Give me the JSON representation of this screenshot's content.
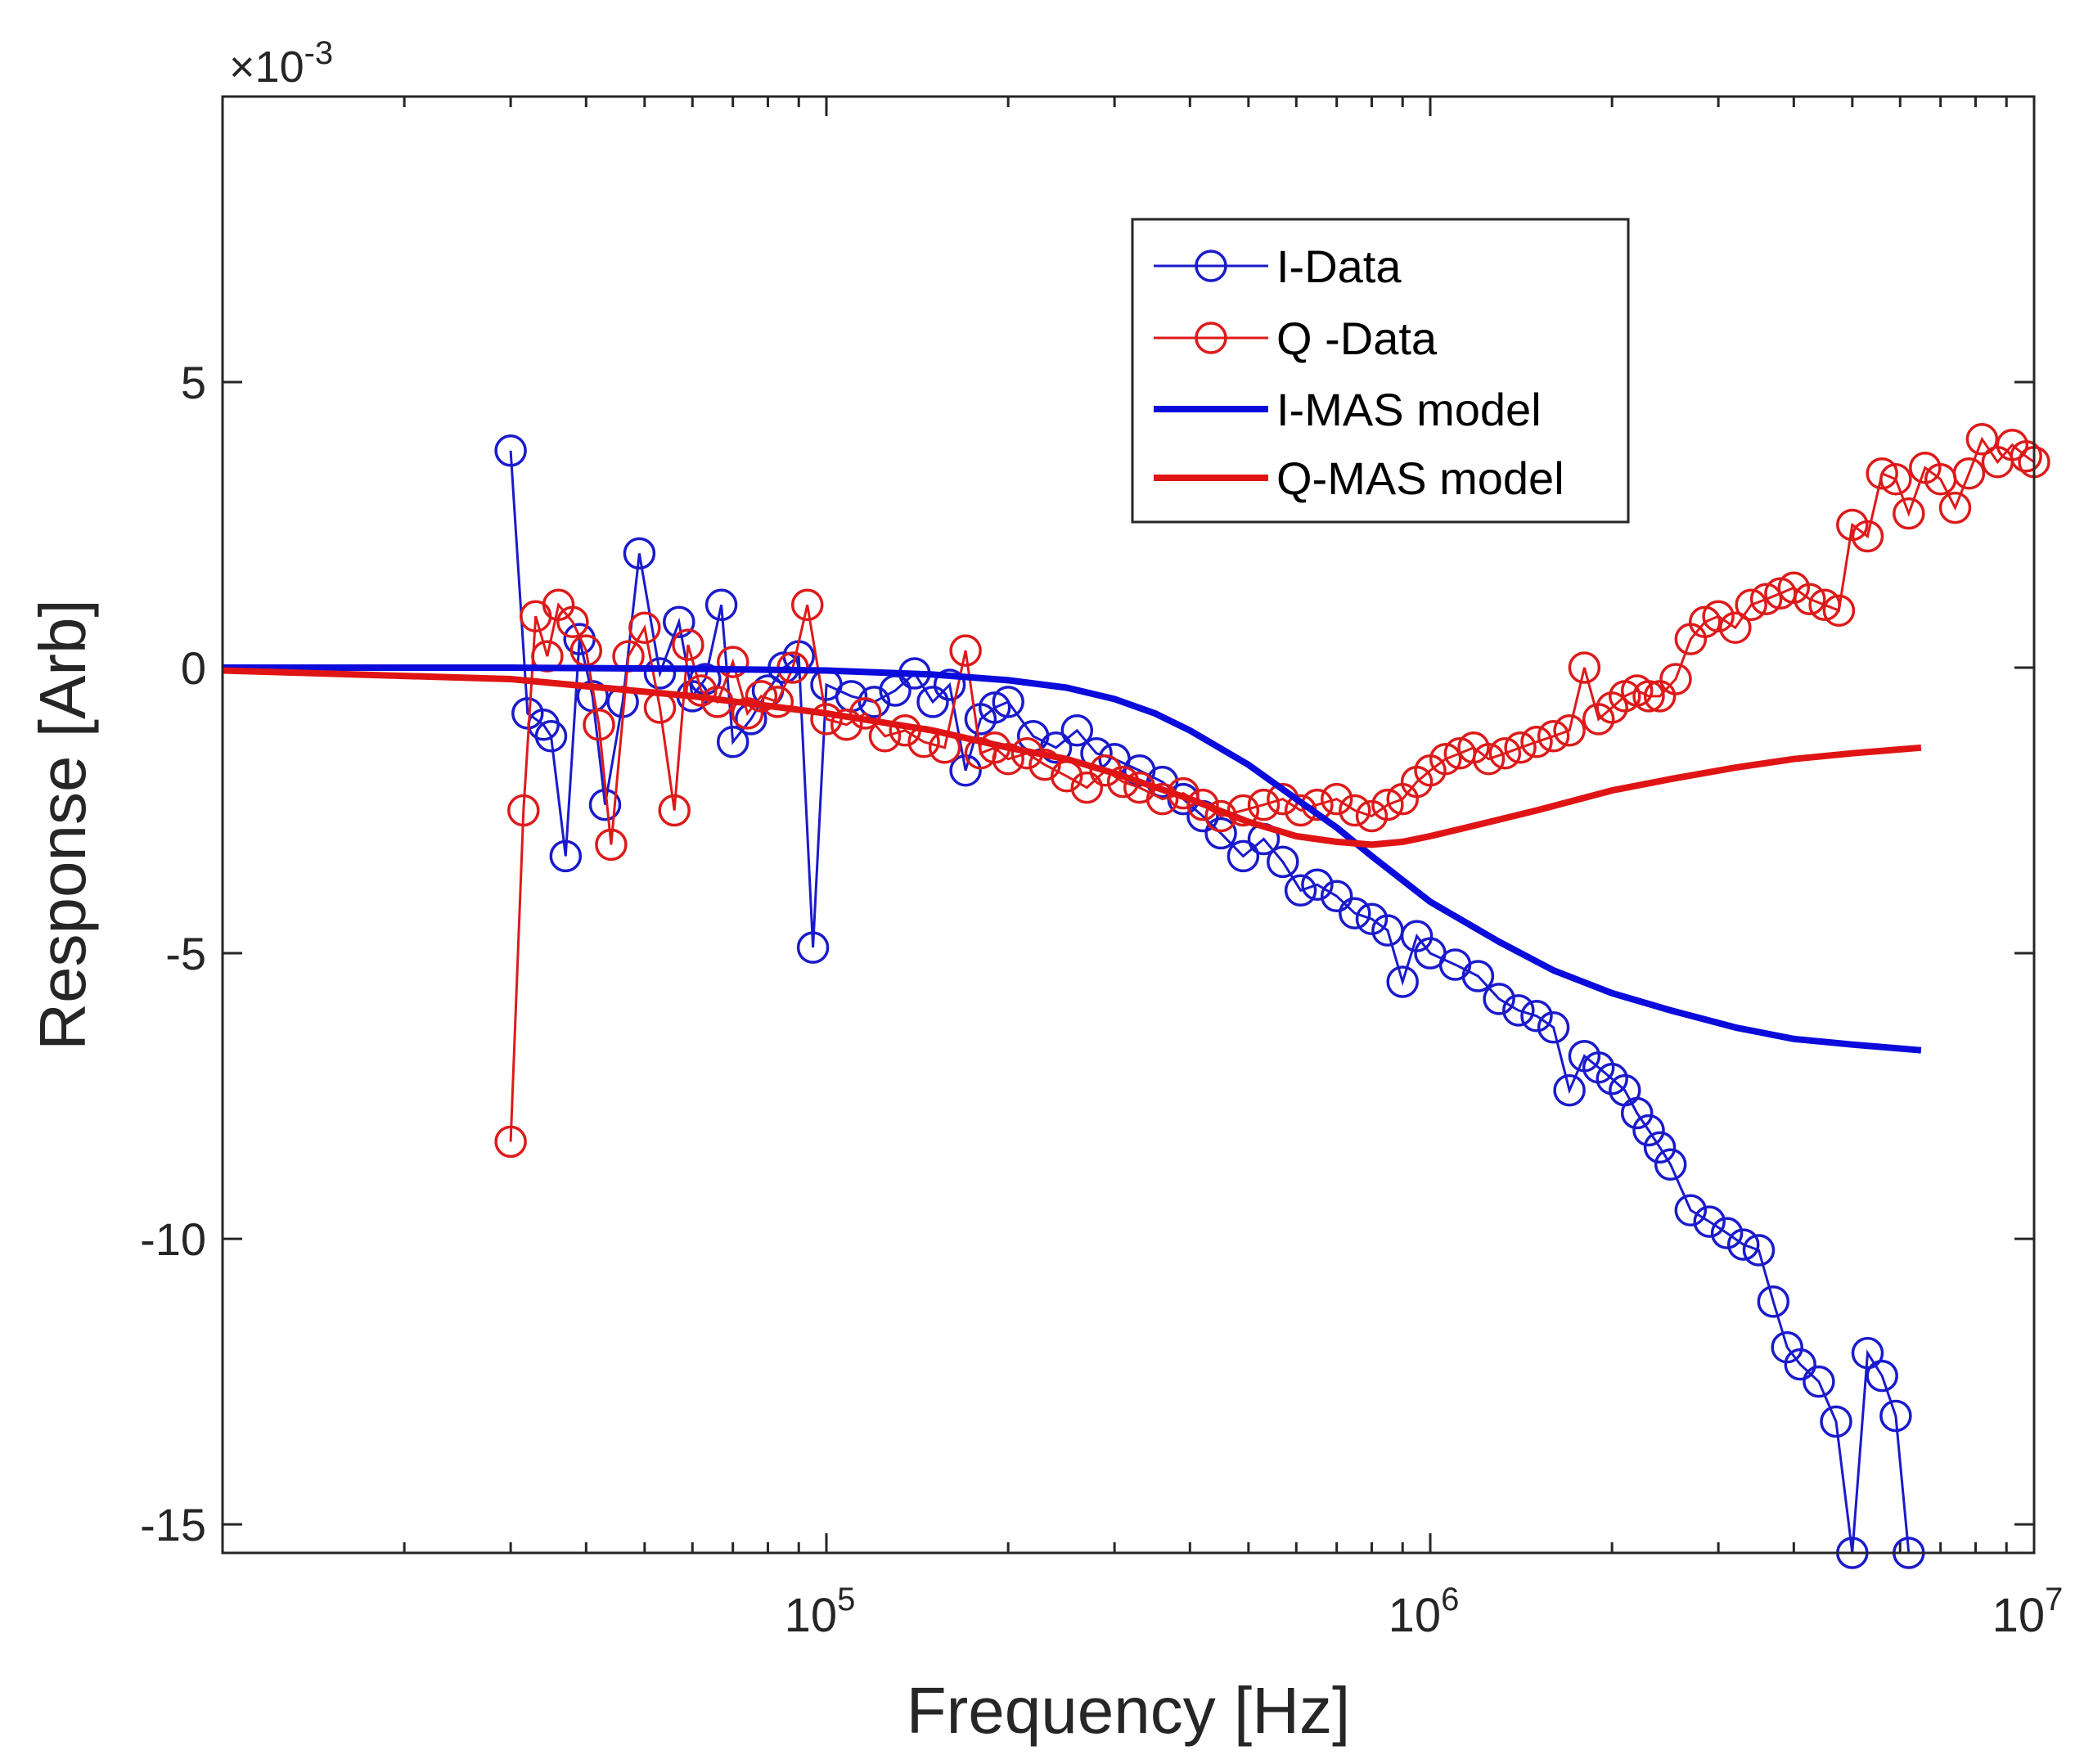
{
  "chart_data": {
    "type": "line",
    "title": "",
    "xlabel": "Frequency [Hz]",
    "ylabel": "Response [Arb]",
    "xscale": "log",
    "xlim": [
      10000,
      10000000
    ],
    "ylim": [
      -15.5,
      10
    ],
    "y_exponent_label": "×10",
    "y_exponent_power": "-3",
    "x_ticks": [
      {
        "value": 100000,
        "base": "10",
        "exp": "5"
      },
      {
        "value": 1000000,
        "base": "10",
        "exp": "6"
      },
      {
        "value": 10000000,
        "base": "10",
        "exp": "7"
      }
    ],
    "y_ticks": [
      {
        "value": 5,
        "label": "5"
      },
      {
        "value": 0,
        "label": "0"
      },
      {
        "value": -5,
        "label": "-5"
      },
      {
        "value": -10,
        "label": "-10"
      },
      {
        "value": -15,
        "label": "-15"
      }
    ],
    "legend_position": "top-right",
    "series": [
      {
        "name": "I-Data",
        "color": "#1a1acc",
        "style": "line-circle",
        "x": [
          30000,
          32000,
          34000,
          35000,
          37000,
          39000,
          41000,
          43000,
          46000,
          49000,
          53000,
          57000,
          60000,
          63000,
          67000,
          70000,
          75000,
          80000,
          85000,
          90000,
          95000,
          100000,
          110000,
          120000,
          130000,
          140000,
          150000,
          160000,
          170000,
          180000,
          190000,
          200000,
          220000,
          240000,
          260000,
          280000,
          300000,
          330000,
          360000,
          390000,
          420000,
          450000,
          490000,
          530000,
          570000,
          610000,
          650000,
          700000,
          750000,
          800000,
          850000,
          900000,
          950000,
          1000000,
          1100000,
          1200000,
          1300000,
          1400000,
          1500000,
          1600000,
          1700000,
          1800000,
          1900000,
          2000000,
          2100000,
          2200000,
          2300000,
          2400000,
          2500000,
          2700000,
          2900000,
          3100000,
          3300000,
          3500000,
          3700000,
          3900000,
          4100000,
          4400000,
          4700000,
          5000000,
          5300000,
          5600000,
          5900000,
          6200000
        ],
        "values": [
          3.8,
          -0.8,
          -1.0,
          -1.2,
          -3.3,
          0.5,
          -0.5,
          -2.4,
          -0.6,
          2.0,
          -0.1,
          0.8,
          -0.5,
          -0.2,
          1.1,
          -1.3,
          -0.9,
          -0.4,
          0.0,
          0.2,
          -4.9,
          -0.3,
          -0.5,
          -0.6,
          -0.4,
          -0.1,
          -0.6,
          -0.3,
          -1.8,
          -0.9,
          -0.7,
          -0.6,
          -1.2,
          -1.4,
          -1.1,
          -1.5,
          -1.6,
          -1.8,
          -2.0,
          -2.3,
          -2.6,
          -2.9,
          -3.3,
          -3.0,
          -3.4,
          -3.9,
          -3.8,
          -4.0,
          -4.3,
          -4.4,
          -4.6,
          -5.5,
          -4.7,
          -5.0,
          -5.2,
          -5.4,
          -5.8,
          -6.0,
          -6.1,
          -6.3,
          -7.4,
          -6.8,
          -7.0,
          -7.2,
          -7.4,
          -7.8,
          -8.1,
          -8.4,
          -8.7,
          -9.5,
          -9.7,
          -9.9,
          -10.1,
          -10.2,
          -11.1,
          -11.9,
          -12.2,
          -12.5,
          -13.2,
          -15.5,
          -12.0,
          -12.4,
          -13.1,
          -15.5
        ]
      },
      {
        "name": "Q -Data",
        "color": "#dd1a1a",
        "style": "line-circle",
        "x": [
          30000,
          31500,
          33000,
          34500,
          36000,
          38000,
          40000,
          42000,
          44000,
          47000,
          50000,
          53000,
          56000,
          59000,
          62000,
          66000,
          70000,
          74000,
          78000,
          83000,
          88000,
          93000,
          100000,
          108000,
          116000,
          125000,
          135000,
          145000,
          157000,
          170000,
          180000,
          190000,
          200000,
          215000,
          230000,
          250000,
          270000,
          290000,
          310000,
          330000,
          360000,
          390000,
          420000,
          450000,
          490000,
          530000,
          570000,
          610000,
          650000,
          700000,
          750000,
          800000,
          850000,
          900000,
          950000,
          1000000,
          1060000,
          1120000,
          1180000,
          1250000,
          1330000,
          1410000,
          1500000,
          1600000,
          1700000,
          1800000,
          1900000,
          2000000,
          2100000,
          2200000,
          2300000,
          2400000,
          2550000,
          2700000,
          2850000,
          3000000,
          3200000,
          3400000,
          3600000,
          3800000,
          4000000,
          4250000,
          4500000,
          4750000,
          5000000,
          5300000,
          5600000,
          5900000,
          6200000,
          6600000,
          7000000,
          7400000,
          7800000,
          8200000,
          8700000,
          9200000,
          9700000,
          10000000
        ],
        "values": [
          -8.3,
          -2.5,
          0.9,
          0.2,
          1.1,
          0.8,
          0.3,
          -1.0,
          -3.1,
          0.2,
          0.7,
          -0.7,
          -2.5,
          0.4,
          -0.4,
          -0.6,
          0.1,
          -0.8,
          -0.5,
          -0.6,
          0.0,
          1.1,
          -0.9,
          -1.0,
          -0.8,
          -1.2,
          -1.1,
          -1.3,
          -1.4,
          0.3,
          -1.5,
          -1.4,
          -1.6,
          -1.5,
          -1.7,
          -1.9,
          -2.1,
          -1.8,
          -2.0,
          -2.1,
          -2.3,
          -2.2,
          -2.4,
          -2.6,
          -2.5,
          -2.4,
          -2.3,
          -2.5,
          -2.4,
          -2.3,
          -2.5,
          -2.6,
          -2.4,
          -2.3,
          -2.0,
          -1.8,
          -1.6,
          -1.5,
          -1.4,
          -1.6,
          -1.5,
          -1.4,
          -1.3,
          -1.2,
          -1.1,
          0.0,
          -0.9,
          -0.7,
          -0.5,
          -0.4,
          -0.5,
          -0.5,
          -0.2,
          0.5,
          0.8,
          0.9,
          0.7,
          1.1,
          1.2,
          1.3,
          1.4,
          1.2,
          1.1,
          1.0,
          2.5,
          2.3,
          3.4,
          3.3,
          2.7,
          3.5,
          3.3,
          2.8,
          3.4,
          4.0,
          3.6,
          3.9,
          3.7,
          3.6
        ]
      },
      {
        "name": "I-MAS model",
        "color": "#0b0bdc",
        "style": "line",
        "x": [
          10000,
          30000,
          60000,
          100000,
          150000,
          200000,
          250000,
          300000,
          350000,
          400000,
          500000,
          600000,
          700000,
          800000,
          1000000,
          1300000,
          1600000,
          2000000,
          2500000,
          3200000,
          4000000,
          5000000,
          6500000
        ],
        "values": [
          0.0,
          0.0,
          -0.02,
          -0.05,
          -0.12,
          -0.22,
          -0.35,
          -0.55,
          -0.8,
          -1.1,
          -1.7,
          -2.3,
          -2.8,
          -3.3,
          -4.1,
          -4.8,
          -5.3,
          -5.7,
          -6.0,
          -6.3,
          -6.5,
          -6.6,
          -6.7
        ]
      },
      {
        "name": "Q-MAS model",
        "color": "#e01414",
        "style": "line",
        "x": [
          10000,
          30000,
          60000,
          100000,
          150000,
          200000,
          250000,
          300000,
          400000,
          500000,
          600000,
          700000,
          800000,
          900000,
          1000000,
          1200000,
          1500000,
          2000000,
          2500000,
          3200000,
          4000000,
          5000000,
          6500000
        ],
        "values": [
          -0.05,
          -0.2,
          -0.5,
          -0.8,
          -1.1,
          -1.4,
          -1.6,
          -1.85,
          -2.3,
          -2.7,
          -2.95,
          -3.05,
          -3.1,
          -3.05,
          -2.95,
          -2.75,
          -2.5,
          -2.15,
          -1.95,
          -1.75,
          -1.6,
          -1.5,
          -1.4
        ]
      }
    ]
  }
}
